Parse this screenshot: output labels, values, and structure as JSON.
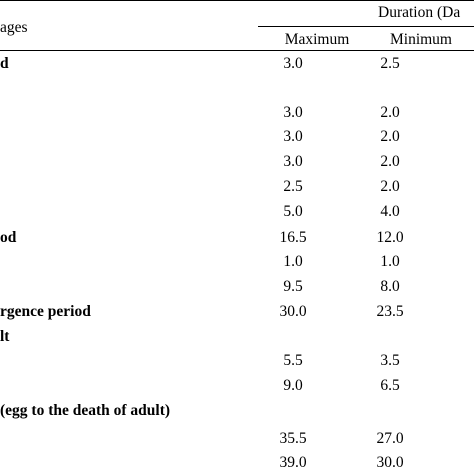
{
  "table": {
    "header": {
      "stage_label": "ages",
      "duration_label": "Duration (Da",
      "col_max": "Maximum",
      "col_min": "Minimum"
    },
    "rows": [
      {
        "label": "d",
        "bold": true,
        "max": "3.0",
        "min": "2.5"
      },
      {
        "label": "",
        "bold": false,
        "max": "3.0",
        "min": "2.0"
      },
      {
        "label": "",
        "bold": false,
        "max": "3.0",
        "min": "2.0"
      },
      {
        "label": "",
        "bold": false,
        "max": "3.0",
        "min": "2.0"
      },
      {
        "label": "",
        "bold": false,
        "max": "2.5",
        "min": "2.0"
      },
      {
        "label": "",
        "bold": false,
        "max": "5.0",
        "min": "4.0"
      },
      {
        "label": "od",
        "bold": true,
        "max": "16.5",
        "min": "12.0"
      },
      {
        "label": "",
        "bold": false,
        "max": "1.0",
        "min": "1.0"
      },
      {
        "label": "",
        "bold": false,
        "max": "9.5",
        "min": "8.0"
      },
      {
        "label": "rgence period",
        "bold": true,
        "max": "30.0",
        "min": "23.5"
      },
      {
        "label": "lt",
        "bold": true,
        "max": "",
        "min": ""
      },
      {
        "label": "",
        "bold": false,
        "max": "5.5",
        "min": "3.5"
      },
      {
        "label": "",
        "bold": false,
        "max": "9.0",
        "min": "6.5"
      },
      {
        "label": " (egg to the death of adult)",
        "bold": true,
        "max": "",
        "min": ""
      },
      {
        "label": "",
        "bold": false,
        "max": "35.5",
        "min": "27.0"
      },
      {
        "label": "",
        "bold": false,
        "max": "39.0",
        "min": "30.0"
      }
    ]
  }
}
